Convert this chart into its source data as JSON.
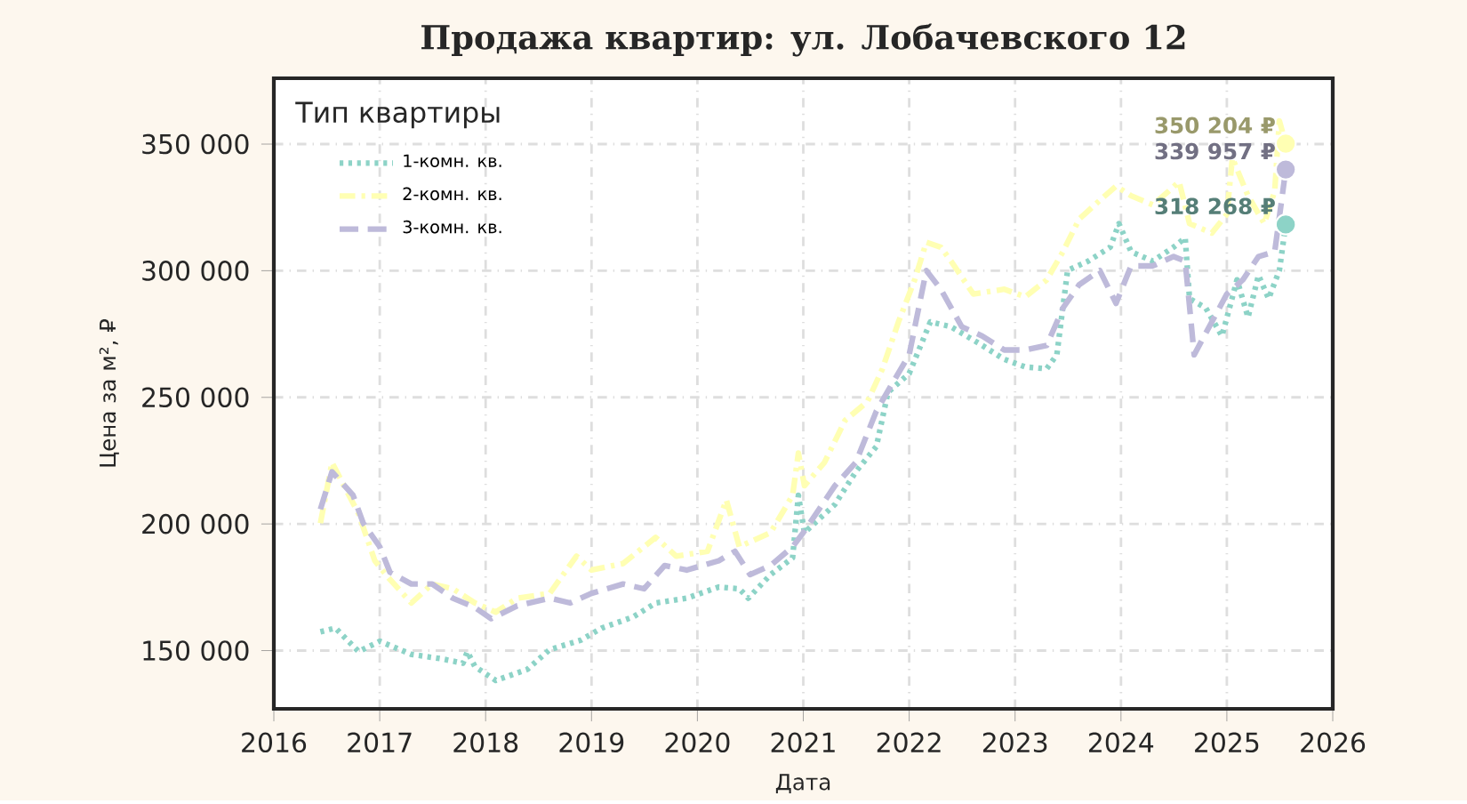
{
  "chart_data": {
    "type": "line",
    "title": "Продажа квартир: ул. Лобачевского 12",
    "xlabel": "Дата",
    "ylabel": "Цена за м², ₽",
    "legend_title": "Тип квартиры",
    "legend": "top left",
    "grid": true,
    "xlim": [
      "2016",
      "2026"
    ],
    "xticks": [
      "2016",
      "2017",
      "2018",
      "2019",
      "2020",
      "2021",
      "2022",
      "2023",
      "2024",
      "2025",
      "2026"
    ],
    "ylim": [
      127000,
      376000
    ],
    "yticks": [
      {
        "value": 150000,
        "label": "150 000"
      },
      {
        "value": 200000,
        "label": "200 000"
      },
      {
        "value": 250000,
        "label": "250 000"
      },
      {
        "value": 300000,
        "label": "300 000"
      },
      {
        "value": 350000,
        "label": "350 000"
      }
    ],
    "series": [
      {
        "name": "1-комн. кв.",
        "color": "#8dd3c7",
        "line_style": "dotted",
        "x": [
          "2016-06-10",
          "2016-08-01",
          "2016-10-20",
          "2017-01-01",
          "2017-04-20",
          "2017-08-05",
          "2017-10-15",
          "2017-10-30",
          "2017-11-25",
          "2018-02-05",
          "2018-05-25",
          "2018-08-10",
          "2018-11-25",
          "2019-02-05",
          "2019-05-25",
          "2019-08-10",
          "2019-11-25",
          "2020-03-15",
          "2020-05-25",
          "2020-06-25",
          "2020-09-10",
          "2020-11-25",
          "2020-12-15",
          "2021-01-05",
          "2021-04-20",
          "2021-07-01",
          "2021-09-10",
          "2021-10-20",
          "2022-01-01",
          "2022-03-15",
          "2022-05-25",
          "2022-09-10",
          "2022-11-25",
          "2023-02-05",
          "2023-04-20",
          "2023-05-25",
          "2023-07-01",
          "2023-09-10",
          "2023-11-25",
          "2023-12-25",
          "2024-02-05",
          "2024-04-20",
          "2024-07-01",
          "2024-08-10",
          "2024-08-25",
          "2024-10-20",
          "2024-12-15",
          "2025-02-05",
          "2025-03-15",
          "2025-04-20",
          "2025-05-25",
          "2025-07-01",
          "2025-07-23"
        ],
        "values": [
          157400,
          158900,
          149600,
          153700,
          148500,
          146700,
          145000,
          149600,
          143700,
          138200,
          142600,
          150400,
          154100,
          158900,
          163300,
          168800,
          170700,
          175100,
          174400,
          170700,
          180000,
          186600,
          211300,
          196600,
          207700,
          220600,
          230600,
          252000,
          259400,
          279800,
          277900,
          270500,
          265000,
          262000,
          261300,
          266800,
          300100,
          303800,
          309300,
          318600,
          307500,
          303800,
          309300,
          313000,
          289000,
          285300,
          274200,
          296400,
          281600,
          298200,
          289000,
          300100,
          318268
        ]
      },
      {
        "name": "2-комн. кв.",
        "color": "#ffffb3",
        "line_style": "dashdot",
        "x": [
          "2016-06-10",
          "2016-07-20",
          "2016-10-20",
          "2016-12-15",
          "2017-02-05",
          "2017-04-20",
          "2017-07-01",
          "2017-09-10",
          "2017-11-25",
          "2018-02-05",
          "2018-04-20",
          "2018-08-10",
          "2018-11-10",
          "2019-01-01",
          "2019-04-20",
          "2019-08-10",
          "2019-10-20",
          "2020-02-05",
          "2020-04-10",
          "2020-05-25",
          "2020-09-10",
          "2020-11-25",
          "2020-12-15",
          "2021-01-05",
          "2021-03-15",
          "2021-05-25",
          "2021-08-10",
          "2021-10-01",
          "2021-11-25",
          "2022-01-20",
          "2022-03-01",
          "2022-04-20",
          "2022-05-25",
          "2022-08-10",
          "2022-11-25",
          "2023-02-05",
          "2023-04-20",
          "2023-06-15",
          "2023-08-10",
          "2023-10-20",
          "2023-12-15",
          "2024-02-05",
          "2024-04-20",
          "2024-06-15",
          "2024-07-20",
          "2024-08-25",
          "2024-11-10",
          "2025-01-01",
          "2025-01-20",
          "2025-03-15",
          "2025-05-10",
          "2025-06-15",
          "2025-07-01",
          "2025-07-23"
        ],
        "values": [
          200300,
          224300,
          204000,
          185500,
          178100,
          168800,
          176300,
          174400,
          168800,
          165200,
          170700,
          172600,
          187300,
          181800,
          184400,
          194700,
          187300,
          189200,
          209500,
          191000,
          196600,
          211300,
          228000,
          215100,
          224300,
          240900,
          248300,
          261300,
          279800,
          296400,
          311200,
          309300,
          303800,
          290800,
          292700,
          289700,
          296400,
          307500,
          320400,
          327800,
          333400,
          329600,
          326000,
          331500,
          335200,
          318600,
          314900,
          322300,
          344500,
          329600,
          318600,
          331500,
          359200,
          350204
        ]
      },
      {
        "name": "3-комн. кв.",
        "color": "#bebada",
        "line_style": "dashed",
        "x": [
          "2016-06-10",
          "2016-07-20",
          "2016-10-01",
          "2016-11-05",
          "2017-01-01",
          "2017-02-05",
          "2017-04-20",
          "2017-07-01",
          "2017-09-10",
          "2017-11-25",
          "2018-01-20",
          "2018-04-20",
          "2018-08-10",
          "2018-10-20",
          "2019-01-01",
          "2019-04-20",
          "2019-07-01",
          "2019-09-10",
          "2019-11-25",
          "2020-03-15",
          "2020-05-10",
          "2020-07-01",
          "2020-09-10",
          "2020-11-25",
          "2021-01-01",
          "2021-04-20",
          "2021-07-01",
          "2021-09-10",
          "2021-11-05",
          "2022-01-01",
          "2022-03-01",
          "2022-04-20",
          "2022-07-01",
          "2022-09-10",
          "2022-11-25",
          "2023-02-05",
          "2023-04-20",
          "2023-06-15",
          "2023-08-10",
          "2023-10-20",
          "2023-12-15",
          "2024-02-05",
          "2024-04-20",
          "2024-07-01",
          "2024-08-10",
          "2024-09-10",
          "2024-11-10",
          "2025-01-01",
          "2025-02-25",
          "2025-04-20",
          "2025-06-15",
          "2025-07-23"
        ],
        "values": [
          205800,
          220600,
          211300,
          200300,
          191000,
          181000,
          176300,
          176300,
          170700,
          167000,
          162600,
          167700,
          170700,
          168800,
          172600,
          176300,
          174400,
          183600,
          181800,
          185500,
          189200,
          180000,
          183600,
          191000,
          196600,
          215100,
          224300,
          244600,
          255700,
          266800,
          300100,
          292700,
          277900,
          274200,
          268700,
          268700,
          270500,
          285300,
          294500,
          300100,
          287100,
          301900,
          301900,
          305600,
          303800,
          266800,
          279800,
          290800,
          296400,
          305600,
          307500,
          339957
        ]
      }
    ],
    "annotations": [
      {
        "text": "318 268 ₽",
        "x": "2025-07-23",
        "y": 318268
      },
      {
        "text": "350 204 ₽",
        "x": "2025-07-23",
        "y": 350204
      },
      {
        "text": "339 957 ₽",
        "x": "2025-07-23",
        "y": 339957
      }
    ]
  }
}
